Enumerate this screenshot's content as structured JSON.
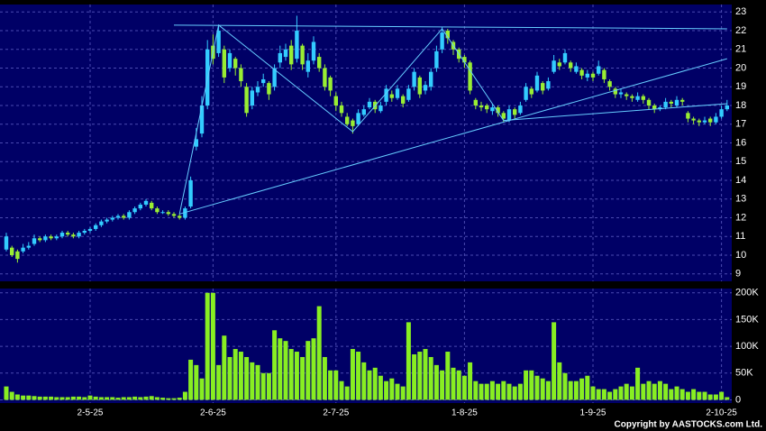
{
  "chart_data": {
    "type": "candlestick",
    "categories": [
      null,
      null,
      null,
      null,
      null,
      null,
      null,
      null,
      null,
      null,
      null,
      null,
      null,
      null,
      null,
      "2-5-25",
      null,
      null,
      null,
      null,
      null,
      null,
      null,
      null,
      null,
      null,
      null,
      null,
      null,
      null,
      null,
      null,
      null,
      null,
      null,
      null,
      null,
      "2-6-25",
      null,
      null,
      null,
      null,
      null,
      null,
      null,
      null,
      null,
      null,
      null,
      null,
      null,
      null,
      null,
      null,
      null,
      null,
      null,
      null,
      null,
      "2-7-25",
      null,
      null,
      null,
      null,
      null,
      null,
      null,
      null,
      null,
      null,
      null,
      null,
      null,
      null,
      null,
      null,
      null,
      null,
      null,
      null,
      null,
      null,
      "1-8-25",
      null,
      null,
      null,
      null,
      null,
      null,
      null,
      null,
      null,
      null,
      null,
      null,
      null,
      null,
      null,
      null,
      null,
      null,
      null,
      null,
      null,
      null,
      "1-9-25",
      null,
      null,
      null,
      null,
      null,
      null,
      null,
      null,
      null,
      null,
      null,
      null,
      null,
      null,
      null,
      null,
      null,
      null,
      null,
      null,
      null,
      null,
      "2-10-25",
      null
    ],
    "open": [
      10.3,
      10.4,
      10.2,
      10.2,
      10.4,
      10.6,
      10.9,
      10.8,
      11.0,
      10.9,
      11.0,
      11.2,
      11.1,
      11.0,
      11.2,
      11.3,
      11.4,
      11.6,
      11.8,
      11.9,
      12.0,
      12.1,
      12.0,
      12.3,
      12.5,
      12.7,
      12.8,
      12.5,
      12.3,
      12.3,
      12.2,
      12.1,
      12.0,
      12.6,
      15.8,
      16.5,
      18.0,
      21.2,
      20.8,
      21.0,
      20.0,
      20.5,
      20.0,
      19.0,
      18.0,
      18.7,
      19.2,
      19.2,
      19.0,
      20.3,
      20.6,
      21.2,
      20.5,
      21.2,
      19.8,
      20.4,
      20.6,
      20.0,
      19.5,
      18.5,
      18.0,
      17.4,
      17.2,
      17.0,
      17.5,
      17.9,
      18.2,
      17.7,
      18.2,
      18.6,
      18.4,
      18.5,
      18.3,
      19.0,
      19.5,
      18.8,
      19.0,
      20.0,
      21.0,
      22.0,
      21.4,
      21.0,
      20.6,
      20.3,
      18.3,
      18.0,
      18.0,
      17.7,
      17.9,
      17.6,
      17.2,
      17.8,
      17.6,
      18.3,
      18.9,
      18.8,
      19.2,
      18.9,
      19.8,
      20.3,
      20.3,
      20.3,
      19.8,
      19.9,
      19.5,
      19.7,
      19.7,
      19.9,
      19.3,
      18.9,
      18.6,
      18.6,
      18.5,
      18.3,
      18.5,
      18.3,
      18.0,
      17.8,
      17.9,
      18.2,
      18.0,
      18.3,
      17.6,
      17.3,
      17.2,
      17.1,
      17.3,
      17.1,
      17.4,
      17.8
    ],
    "high": [
      11.2,
      10.5,
      10.3,
      10.6,
      10.7,
      11.1,
      11.0,
      11.1,
      11.1,
      11.1,
      11.3,
      11.3,
      11.2,
      11.3,
      11.4,
      11.5,
      11.7,
      11.9,
      12.0,
      12.1,
      12.2,
      12.2,
      12.4,
      12.6,
      12.8,
      13.0,
      12.9,
      12.6,
      12.4,
      12.4,
      12.3,
      12.2,
      12.6,
      14.2,
      16.8,
      18.5,
      21.5,
      21.8,
      22.3,
      21.2,
      21.0,
      20.6,
      20.2,
      19.2,
      19.0,
      19.3,
      19.7,
      19.3,
      20.2,
      21.2,
      21.3,
      21.5,
      22.8,
      21.3,
      20.8,
      21.7,
      20.8,
      20.2,
      19.6,
      18.7,
      18.2,
      17.6,
      17.3,
      17.8,
      18.0,
      18.4,
      18.3,
      18.2,
      19.1,
      18.8,
      19.1,
      18.6,
      19.1,
      20.0,
      19.6,
      19.3,
      20.0,
      21.2,
      22.2,
      22.1,
      21.5,
      21.1,
      20.7,
      20.4,
      18.4,
      18.2,
      18.1,
      18.1,
      18.0,
      17.7,
      18.0,
      17.9,
      18.2,
      19.2,
      19.0,
      19.8,
      19.3,
      19.5,
      20.7,
      20.5,
      21.0,
      20.4,
      20.3,
      20.0,
      19.9,
      19.8,
      20.4,
      20.0,
      19.4,
      19.0,
      18.9,
      18.7,
      18.6,
      18.7,
      18.6,
      18.4,
      18.1,
      18.0,
      18.4,
      18.3,
      18.5,
      18.4,
      17.7,
      17.4,
      17.3,
      17.4,
      17.4,
      17.6,
      18.0,
      18.3
    ],
    "low": [
      10.2,
      9.9,
      9.6,
      10.1,
      10.3,
      10.5,
      10.7,
      10.7,
      10.8,
      10.8,
      10.9,
      11.0,
      10.9,
      10.9,
      11.1,
      11.2,
      11.3,
      11.5,
      11.7,
      11.8,
      11.9,
      11.9,
      11.9,
      12.2,
      12.4,
      12.6,
      12.4,
      12.2,
      12.2,
      12.1,
      12.0,
      11.9,
      11.9,
      12.5,
      15.6,
      16.3,
      17.8,
      20.2,
      20.6,
      19.2,
      19.8,
      19.6,
      19.0,
      17.4,
      17.8,
      18.5,
      19.0,
      18.3,
      18.8,
      20.0,
      20.4,
      19.9,
      20.3,
      19.9,
      19.5,
      20.2,
      19.8,
      18.8,
      18.5,
      17.7,
      17.4,
      16.9,
      16.5,
      16.9,
      17.4,
      17.8,
      17.6,
      17.6,
      18.0,
      18.2,
      18.3,
      17.9,
      18.2,
      18.8,
      18.4,
      18.6,
      18.8,
      19.8,
      20.8,
      21.3,
      20.7,
      20.3,
      20.0,
      18.6,
      17.8,
      17.7,
      17.6,
      17.5,
      17.4,
      17.1,
      17.1,
      17.3,
      17.5,
      18.2,
      18.4,
      18.7,
      18.6,
      18.8,
      19.7,
      19.9,
      20.2,
      19.8,
      19.7,
      19.4,
      19.3,
      19.3,
      19.6,
      19.2,
      18.8,
      18.4,
      18.4,
      18.3,
      18.2,
      18.2,
      18.1,
      17.8,
      17.6,
      17.7,
      17.8,
      17.9,
      17.9,
      18.0,
      17.1,
      17.0,
      16.9,
      17.0,
      16.9,
      17.0,
      17.3,
      17.7
    ],
    "close": [
      11.0,
      10.0,
      9.8,
      10.4,
      10.5,
      10.9,
      10.8,
      11.0,
      10.9,
      11.0,
      11.2,
      11.1,
      11.0,
      11.2,
      11.3,
      11.4,
      11.6,
      11.8,
      11.9,
      12.0,
      12.1,
      12.0,
      12.3,
      12.5,
      12.7,
      12.9,
      12.5,
      12.3,
      12.3,
      12.2,
      12.1,
      12.0,
      12.5,
      14.0,
      16.2,
      18.0,
      21.0,
      20.5,
      22.0,
      19.5,
      20.8,
      20.0,
      19.3,
      17.6,
      18.8,
      19.0,
      19.4,
      18.6,
      20.0,
      20.8,
      21.0,
      20.2,
      22.0,
      20.2,
      20.4,
      21.4,
      20.0,
      19.0,
      18.8,
      18.0,
      17.6,
      17.0,
      16.9,
      17.6,
      17.8,
      18.2,
      17.8,
      18.0,
      18.9,
      18.4,
      18.9,
      18.1,
      18.9,
      19.8,
      18.6,
      19.1,
      19.8,
      20.9,
      21.9,
      21.6,
      21.0,
      20.5,
      20.3,
      18.8,
      18.0,
      17.9,
      17.8,
      17.9,
      17.6,
      17.3,
      17.8,
      17.5,
      18.0,
      19.0,
      18.6,
      19.6,
      18.8,
      19.3,
      20.4,
      20.1,
      20.8,
      20.0,
      20.1,
      19.6,
      19.7,
      19.5,
      20.1,
      19.4,
      19.0,
      18.6,
      18.7,
      18.5,
      18.4,
      18.5,
      18.3,
      18.0,
      17.8,
      17.9,
      18.2,
      18.1,
      18.3,
      18.2,
      17.3,
      17.2,
      17.1,
      17.2,
      17.1,
      17.4,
      17.8,
      18.0
    ],
    "up_color": "#33ccff",
    "down_color": "#99ee33",
    "ylim": [
      8.6,
      23.4
    ],
    "yticks": [
      9,
      10,
      11,
      12,
      13,
      14,
      15,
      16,
      17,
      18,
      19,
      20,
      21,
      22,
      23
    ],
    "grid": true,
    "trendlines": [
      {
        "x": [
          30,
          129
        ],
        "y": [
          22.3,
          22.1
        ]
      },
      {
        "x": [
          31,
          38,
          62,
          78,
          89
        ],
        "y": [
          12.2,
          22.3,
          16.6,
          22.1,
          17.2
        ]
      },
      {
        "x": [
          31,
          129
        ],
        "y": [
          12.2,
          20.5
        ]
      },
      {
        "x": [
          89,
          129
        ],
        "y": [
          17.2,
          18.1
        ]
      }
    ],
    "trendline_color": "#66ccff",
    "volume": {
      "color": "#88ee22",
      "ylim": [
        -6000,
        208000
      ],
      "yticks": [
        0,
        {
          "value": 50000,
          "label": "50K"
        },
        {
          "value": 100000,
          "label": "100K"
        },
        {
          "value": 150000,
          "label": "150K"
        },
        {
          "value": 200000,
          "label": "200K"
        }
      ],
      "values": [
        25000,
        15000,
        10000,
        8000,
        8000,
        7000,
        6000,
        6000,
        6000,
        5000,
        5000,
        5000,
        6000,
        6000,
        5000,
        8000,
        6000,
        5000,
        5000,
        5000,
        4000,
        5000,
        5000,
        6000,
        5000,
        6000,
        7000,
        5000,
        4000,
        3000,
        3000,
        4000,
        15000,
        75000,
        65000,
        40000,
        200000,
        200000,
        65000,
        120000,
        80000,
        95000,
        90000,
        80000,
        70000,
        65000,
        50000,
        50000,
        130000,
        115000,
        110000,
        95000,
        90000,
        80000,
        110000,
        115000,
        175000,
        80000,
        55000,
        55000,
        35000,
        25000,
        95000,
        90000,
        70000,
        55000,
        60000,
        45000,
        35000,
        40000,
        30000,
        25000,
        145000,
        85000,
        90000,
        95000,
        80000,
        65000,
        55000,
        90000,
        60000,
        55000,
        45000,
        70000,
        35000,
        30000,
        30000,
        35000,
        30000,
        35000,
        30000,
        25000,
        30000,
        55000,
        55000,
        45000,
        40000,
        35000,
        145000,
        70000,
        50000,
        35000,
        35000,
        40000,
        45000,
        25000,
        20000,
        20000,
        15000,
        20000,
        25000,
        30000,
        25000,
        60000,
        30000,
        35000,
        30000,
        35000,
        30000,
        20000,
        25000,
        20000,
        15000,
        20000,
        15000,
        15000,
        10000,
        10000,
        15000,
        5000
      ]
    },
    "footnote": "Copyright by AASTOCKS.com Ltd."
  }
}
